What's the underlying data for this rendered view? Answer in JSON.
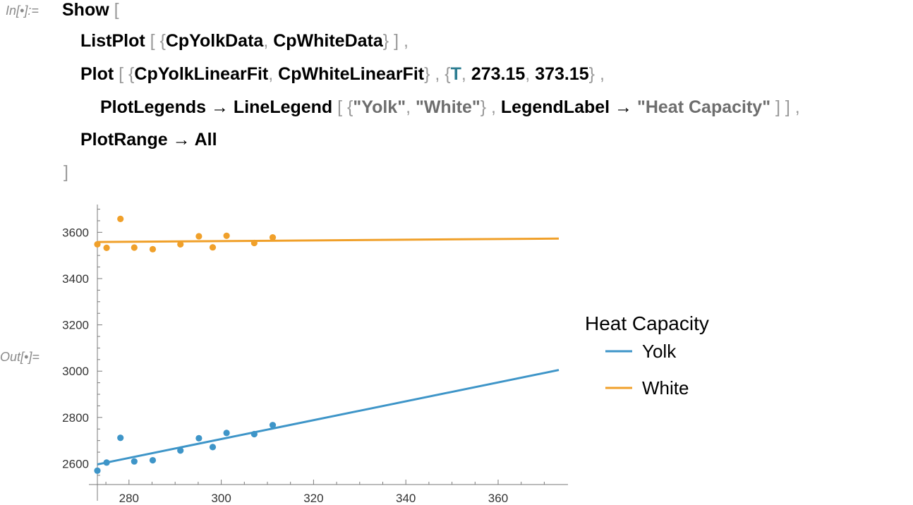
{
  "input_cell": {
    "label": "In[•]:=",
    "lines": [
      [
        {
          "t": "Show",
          "c": "tk"
        },
        {
          "t": " [",
          "c": "br"
        }
      ],
      [
        {
          "t": "ListPlot",
          "c": "tk"
        },
        {
          "t": " [ {",
          "c": "br"
        },
        {
          "t": "CpYolkData",
          "c": "tk"
        },
        {
          "t": ", ",
          "c": "br"
        },
        {
          "t": "CpWhiteData",
          "c": "tk"
        },
        {
          "t": "} ] ,",
          "c": "br"
        }
      ],
      [
        {
          "t": "Plot",
          "c": "tk"
        },
        {
          "t": " [ {",
          "c": "br"
        },
        {
          "t": "CpYolkLinearFit",
          "c": "tk"
        },
        {
          "t": ", ",
          "c": "br"
        },
        {
          "t": "CpWhiteLinearFit",
          "c": "tk"
        },
        {
          "t": "} , {",
          "c": "br"
        },
        {
          "t": "T",
          "c": "var"
        },
        {
          "t": ", ",
          "c": "br"
        },
        {
          "t": "273.15",
          "c": "tk"
        },
        {
          "t": ", ",
          "c": "br"
        },
        {
          "t": "373.15",
          "c": "tk"
        },
        {
          "t": "} ,",
          "c": "br"
        }
      ],
      [
        {
          "t": "PlotLegends",
          "c": "tk"
        },
        {
          "t": " → ",
          "c": "arrow"
        },
        {
          "t": "LineLegend",
          "c": "tk"
        },
        {
          "t": " [ {",
          "c": "br"
        },
        {
          "t": "\"Yolk\"",
          "c": "str"
        },
        {
          "t": ", ",
          "c": "br"
        },
        {
          "t": "\"White\"",
          "c": "str"
        },
        {
          "t": "} , ",
          "c": "br"
        },
        {
          "t": "LegendLabel",
          "c": "tk"
        },
        {
          "t": " → ",
          "c": "arrow"
        },
        {
          "t": "\"Heat Capacity\"",
          "c": "str"
        },
        {
          "t": " ] ] ,",
          "c": "br"
        }
      ],
      [
        {
          "t": "PlotRange",
          "c": "tk"
        },
        {
          "t": " → ",
          "c": "arrow"
        },
        {
          "t": "All",
          "c": "tk"
        }
      ],
      [
        {
          "t": "]",
          "c": "br"
        }
      ]
    ]
  },
  "output_cell": {
    "label": "Out[•]="
  },
  "colors": {
    "yolk": "#3e95c8",
    "white": "#f0a02a",
    "axis": "#7a7a7a"
  },
  "chart_data": {
    "type": "scatter",
    "xlim": [
      273.15,
      373.15
    ],
    "ylim": [
      2510,
      3720
    ],
    "xticks": [
      280,
      300,
      320,
      340,
      360
    ],
    "yticks": [
      2600,
      2800,
      3000,
      3200,
      3400,
      3600
    ],
    "legend": {
      "label": "Heat Capacity",
      "placement": "right",
      "entries": [
        "Yolk",
        "White"
      ]
    },
    "series": [
      {
        "name": "Yolk",
        "points": [
          [
            273.15,
            2570
          ],
          [
            275.15,
            2605
          ],
          [
            278.15,
            2712
          ],
          [
            281.15,
            2610
          ],
          [
            285.15,
            2615
          ],
          [
            291.15,
            2657
          ],
          [
            295.15,
            2710
          ],
          [
            298.15,
            2672
          ],
          [
            301.15,
            2733
          ],
          [
            307.15,
            2728
          ],
          [
            311.15,
            2767
          ]
        ],
        "fit": [
          [
            273.15,
            2597
          ],
          [
            373.15,
            3005
          ]
        ]
      },
      {
        "name": "White",
        "points": [
          [
            273.15,
            3548
          ],
          [
            275.15,
            3533
          ],
          [
            278.15,
            3658
          ],
          [
            281.15,
            3534
          ],
          [
            285.15,
            3527
          ],
          [
            291.15,
            3548
          ],
          [
            295.15,
            3583
          ],
          [
            298.15,
            3535
          ],
          [
            301.15,
            3585
          ],
          [
            307.15,
            3554
          ],
          [
            311.15,
            3578
          ]
        ],
        "fit": [
          [
            273.15,
            3558
          ],
          [
            373.15,
            3573
          ]
        ]
      }
    ]
  }
}
